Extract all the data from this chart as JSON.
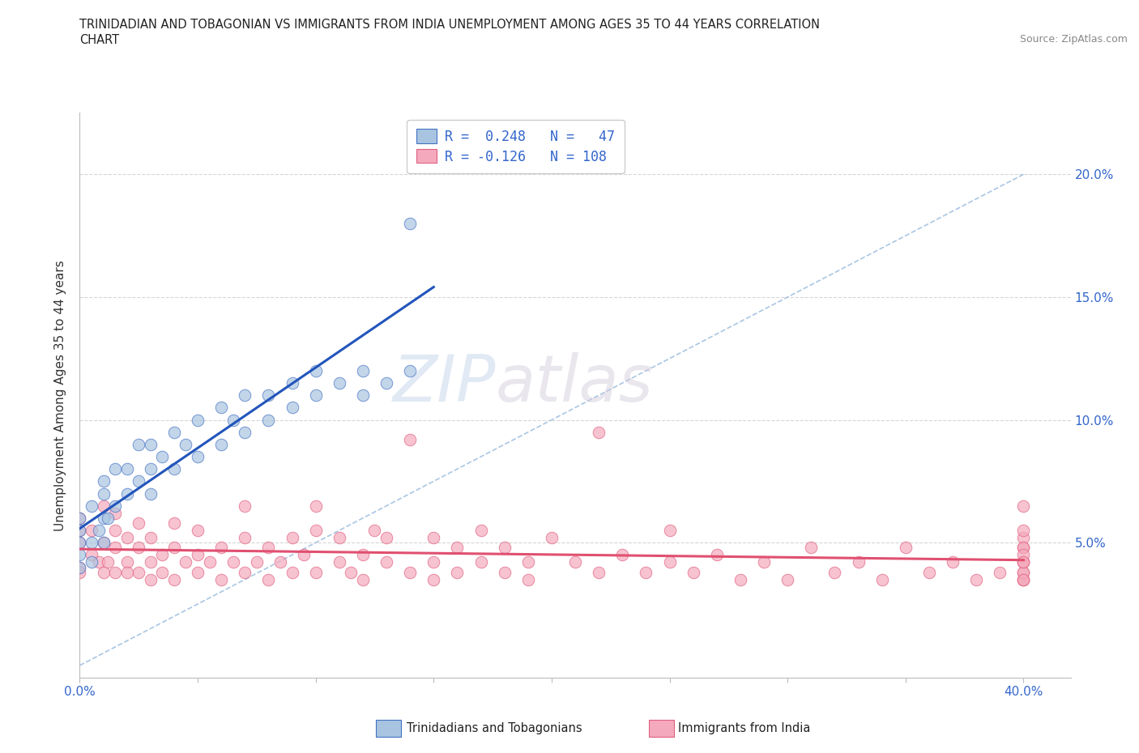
{
  "title_line1": "TRINIDADIAN AND TOBAGONIAN VS IMMIGRANTS FROM INDIA UNEMPLOYMENT AMONG AGES 35 TO 44 YEARS CORRELATION",
  "title_line2": "CHART",
  "source_text": "Source: ZipAtlas.com",
  "ylabel": "Unemployment Among Ages 35 to 44 years",
  "xlim": [
    0.0,
    0.42
  ],
  "ylim": [
    -0.005,
    0.225
  ],
  "background_color": "#ffffff",
  "watermark_text1": "ZIP",
  "watermark_text2": "atlas",
  "legend_r1": "R =  0.248",
  "legend_n1": "N =   47",
  "legend_r2": "R = -0.126",
  "legend_n2": "N = 108",
  "color_blue": "#a8c4e0",
  "color_pink": "#f4aabc",
  "edge_blue": "#4472c4",
  "edge_pink": "#e06080",
  "trendline_blue": "#2255bb",
  "trendline_pink": "#e05070",
  "trendline_dashed_color": "#a0c0e0",
  "grid_color": "#cccccc",
  "blue_x": [
    0.0,
    0.0,
    0.0,
    0.0,
    0.0,
    0.005,
    0.005,
    0.005,
    0.008,
    0.01,
    0.01,
    0.01,
    0.01,
    0.012,
    0.015,
    0.015,
    0.02,
    0.02,
    0.025,
    0.025,
    0.03,
    0.03,
    0.03,
    0.035,
    0.04,
    0.04,
    0.045,
    0.05,
    0.05,
    0.06,
    0.06,
    0.065,
    0.07,
    0.07,
    0.08,
    0.08,
    0.09,
    0.09,
    0.1,
    0.1,
    0.11,
    0.12,
    0.12,
    0.13,
    0.14,
    0.14,
    0.15
  ],
  "blue_y": [
    0.04,
    0.045,
    0.05,
    0.055,
    0.06,
    0.042,
    0.05,
    0.065,
    0.055,
    0.05,
    0.06,
    0.07,
    0.075,
    0.06,
    0.065,
    0.08,
    0.07,
    0.08,
    0.075,
    0.09,
    0.07,
    0.08,
    0.09,
    0.085,
    0.08,
    0.095,
    0.09,
    0.085,
    0.1,
    0.09,
    0.105,
    0.1,
    0.095,
    0.11,
    0.1,
    0.11,
    0.105,
    0.115,
    0.11,
    0.12,
    0.115,
    0.11,
    0.12,
    0.115,
    0.18,
    0.12,
    0.21
  ],
  "pink_x": [
    0.0,
    0.0,
    0.0,
    0.0,
    0.0,
    0.005,
    0.005,
    0.008,
    0.01,
    0.01,
    0.01,
    0.012,
    0.015,
    0.015,
    0.015,
    0.015,
    0.02,
    0.02,
    0.02,
    0.025,
    0.025,
    0.025,
    0.03,
    0.03,
    0.03,
    0.035,
    0.035,
    0.04,
    0.04,
    0.04,
    0.045,
    0.05,
    0.05,
    0.05,
    0.055,
    0.06,
    0.06,
    0.065,
    0.07,
    0.07,
    0.07,
    0.075,
    0.08,
    0.08,
    0.085,
    0.09,
    0.09,
    0.095,
    0.1,
    0.1,
    0.1,
    0.11,
    0.11,
    0.115,
    0.12,
    0.12,
    0.125,
    0.13,
    0.13,
    0.14,
    0.14,
    0.15,
    0.15,
    0.15,
    0.16,
    0.16,
    0.17,
    0.17,
    0.18,
    0.18,
    0.19,
    0.19,
    0.2,
    0.21,
    0.22,
    0.22,
    0.23,
    0.24,
    0.25,
    0.25,
    0.26,
    0.27,
    0.28,
    0.29,
    0.3,
    0.31,
    0.32,
    0.33,
    0.34,
    0.35,
    0.36,
    0.37,
    0.38,
    0.39,
    0.4,
    0.4,
    0.4,
    0.4,
    0.4,
    0.4,
    0.4,
    0.4,
    0.4,
    0.4,
    0.4,
    0.4,
    0.4,
    0.4
  ],
  "pink_y": [
    0.04,
    0.05,
    0.055,
    0.06,
    0.038,
    0.045,
    0.055,
    0.042,
    0.05,
    0.038,
    0.065,
    0.042,
    0.048,
    0.055,
    0.038,
    0.062,
    0.042,
    0.052,
    0.038,
    0.048,
    0.038,
    0.058,
    0.042,
    0.035,
    0.052,
    0.045,
    0.038,
    0.048,
    0.035,
    0.058,
    0.042,
    0.045,
    0.038,
    0.055,
    0.042,
    0.048,
    0.035,
    0.042,
    0.052,
    0.038,
    0.065,
    0.042,
    0.048,
    0.035,
    0.042,
    0.052,
    0.038,
    0.045,
    0.055,
    0.038,
    0.065,
    0.042,
    0.052,
    0.038,
    0.045,
    0.035,
    0.055,
    0.042,
    0.052,
    0.038,
    0.092,
    0.042,
    0.052,
    0.035,
    0.048,
    0.038,
    0.042,
    0.055,
    0.038,
    0.048,
    0.042,
    0.035,
    0.052,
    0.042,
    0.095,
    0.038,
    0.045,
    0.038,
    0.042,
    0.055,
    0.038,
    0.045,
    0.035,
    0.042,
    0.035,
    0.048,
    0.038,
    0.042,
    0.035,
    0.048,
    0.038,
    0.042,
    0.035,
    0.038,
    0.042,
    0.048,
    0.035,
    0.052,
    0.038,
    0.065,
    0.042,
    0.035,
    0.048,
    0.055,
    0.038,
    0.045,
    0.035,
    0.042
  ]
}
